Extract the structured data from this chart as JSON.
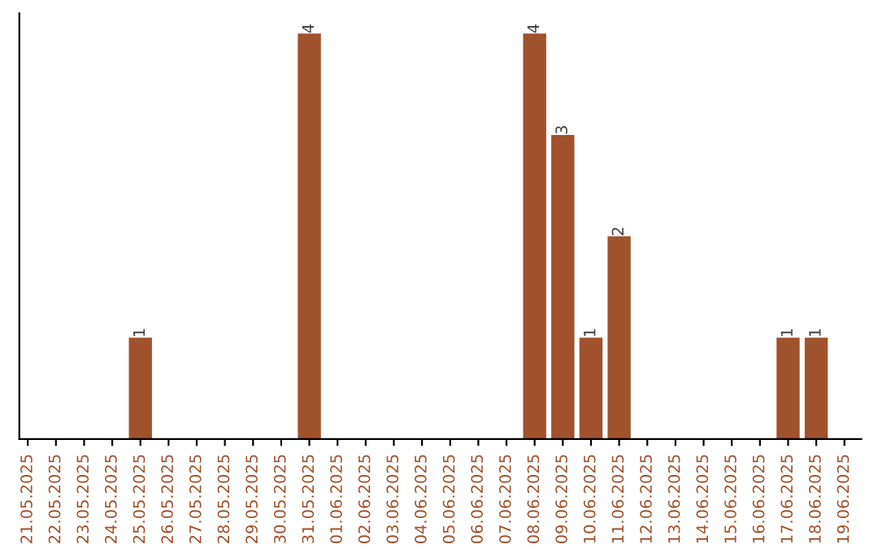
{
  "chart_data": {
    "type": "bar",
    "categories": [
      "21.05.2025",
      "22.05.2025",
      "23.05.2025",
      "24.05.2025",
      "25.05.2025",
      "26.05.2025",
      "27.05.2025",
      "28.05.2025",
      "29.05.2025",
      "30.05.2025",
      "31.05.2025",
      "01.06.2025",
      "02.06.2025",
      "03.06.2025",
      "04.06.2025",
      "05.06.2025",
      "06.06.2025",
      "07.06.2025",
      "08.06.2025",
      "09.06.2025",
      "10.06.2025",
      "11.06.2025",
      "12.06.2025",
      "13.06.2025",
      "14.06.2025",
      "15.06.2025",
      "16.06.2025",
      "17.06.2025",
      "18.06.2025",
      "19.06.2025"
    ],
    "values": [
      0,
      0,
      0,
      0,
      1,
      0,
      0,
      0,
      0,
      0,
      4,
      0,
      0,
      0,
      0,
      0,
      0,
      0,
      4,
      3,
      1,
      2,
      0,
      0,
      0,
      0,
      0,
      1,
      1,
      0
    ],
    "value_labels": [
      null,
      null,
      null,
      null,
      "1",
      null,
      null,
      null,
      null,
      null,
      "4",
      null,
      null,
      null,
      null,
      null,
      null,
      null,
      "4",
      "3",
      "1",
      "2",
      null,
      null,
      null,
      null,
      null,
      "1",
      "1",
      null
    ],
    "color": "#a0522d",
    "ylim": [
      0,
      4.2
    ],
    "grid": false
  }
}
